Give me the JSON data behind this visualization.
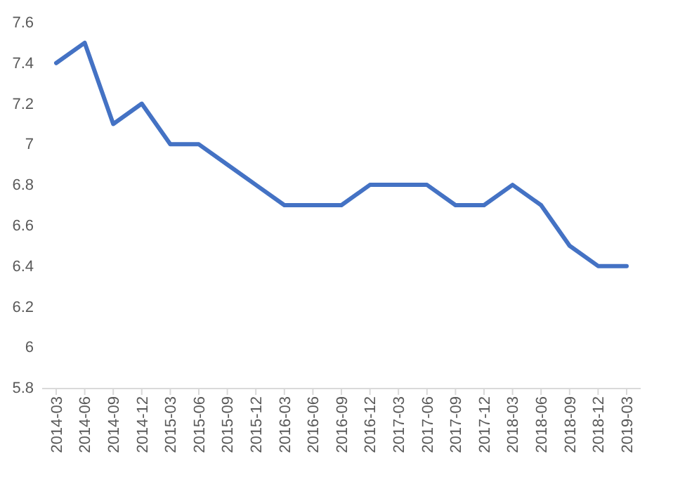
{
  "chart_data": {
    "type": "line",
    "categories": [
      "2014-03",
      "2014-06",
      "2014-09",
      "2014-12",
      "2015-03",
      "2015-06",
      "2015-09",
      "2015-12",
      "2016-03",
      "2016-06",
      "2016-09",
      "2016-12",
      "2017-03",
      "2017-06",
      "2017-09",
      "2017-12",
      "2018-03",
      "2018-06",
      "2018-09",
      "2018-12",
      "2019-03"
    ],
    "series": [
      {
        "color": "#4472c4",
        "values": [
          7.4,
          7.5,
          7.1,
          7.2,
          7.0,
          7.0,
          6.9,
          6.8,
          6.7,
          6.7,
          6.7,
          6.8,
          6.8,
          6.8,
          6.7,
          6.7,
          6.8,
          6.7,
          6.5,
          6.4,
          6.4
        ]
      }
    ],
    "ylim": [
      5.8,
      7.6
    ],
    "yticks": [
      5.8,
      6,
      6.2,
      6.4,
      6.6,
      6.8,
      7,
      7.2,
      7.4,
      7.6
    ],
    "grid": false,
    "marker": "none",
    "line_style": "solid"
  }
}
